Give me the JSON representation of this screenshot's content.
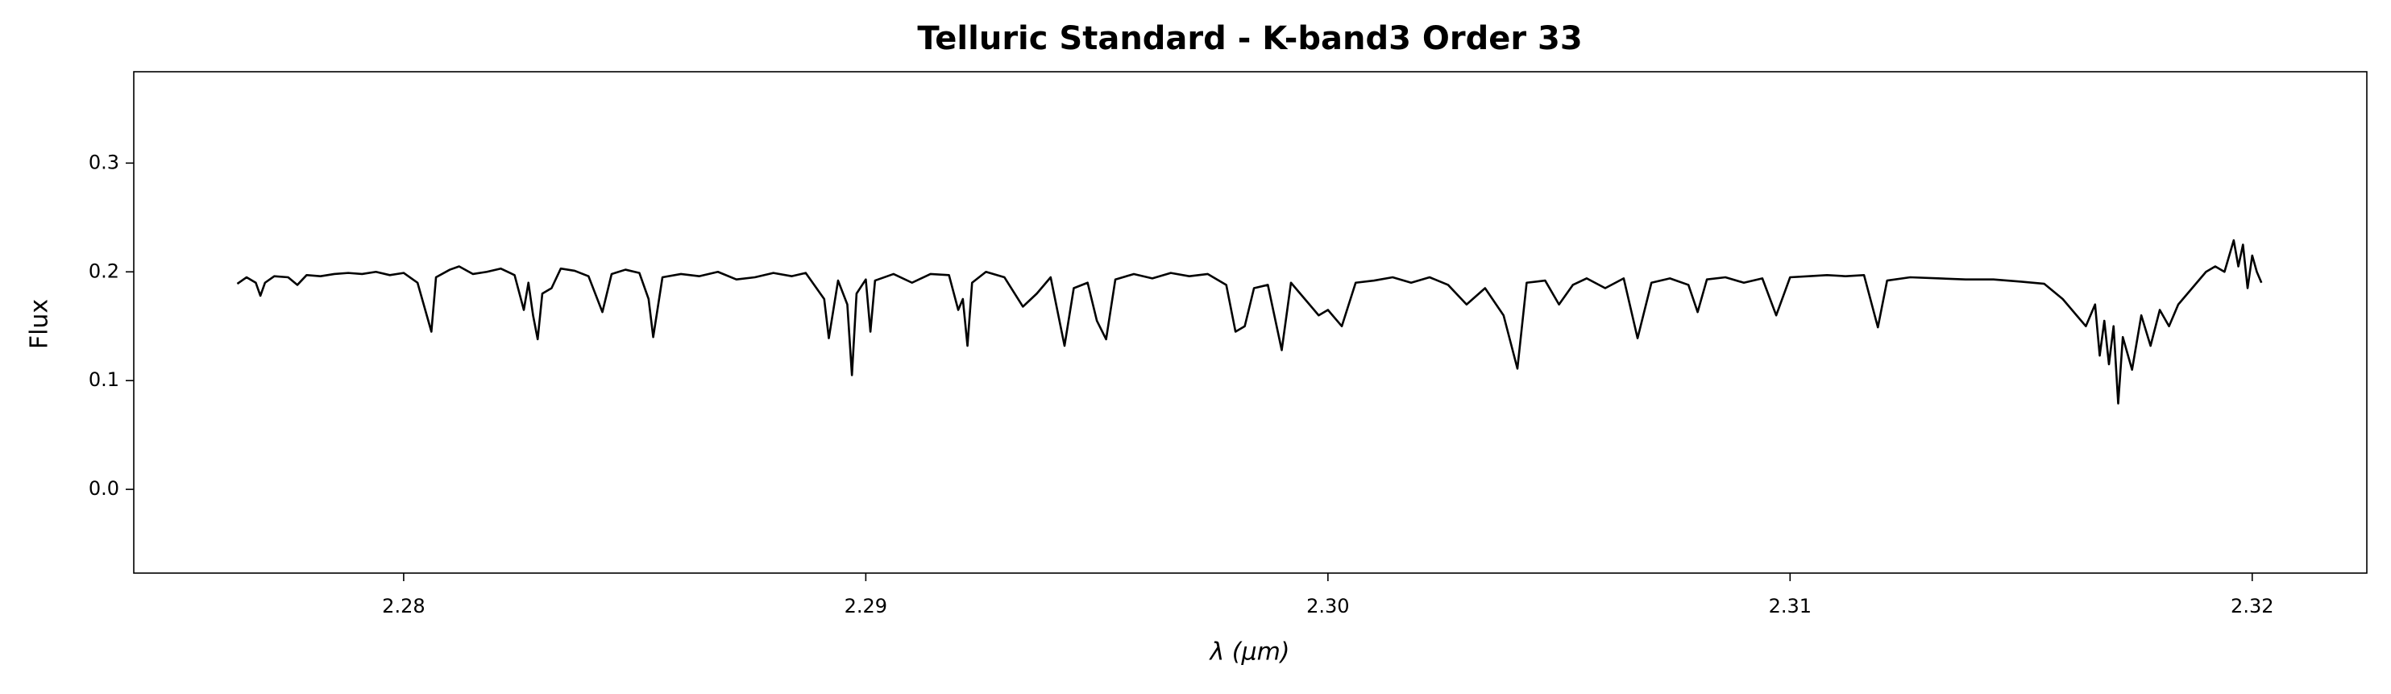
{
  "chart_data": {
    "type": "line",
    "title": "Telluric Standard - K-band3 Order 33",
    "xlabel": "λ (μm)",
    "ylabel": "Flux",
    "color": "#000000",
    "xlim": [
      2.27416,
      2.32248
    ],
    "ylim": [
      -0.077,
      0.384
    ],
    "xticks": [
      2.28,
      2.29,
      {
        "value": 2.3,
        "label": "2.30"
      },
      2.31,
      2.32
    ],
    "yticks": [
      {
        "value": 0,
        "label": "0.0"
      },
      0.1,
      0.2,
      0.3
    ],
    "x": [
      2.2764,
      2.2766,
      2.2768,
      2.2769,
      2.277,
      2.2772,
      2.2775,
      2.2777,
      2.2779,
      2.2782,
      2.2785,
      2.2788,
      2.2791,
      2.2794,
      2.2797,
      2.28,
      2.2803,
      2.2805,
      2.2806,
      2.2807,
      2.281,
      2.2812,
      2.2815,
      2.2818,
      2.2821,
      2.2824,
      2.2826,
      2.2827,
      2.2828,
      2.2829,
      2.283,
      2.2832,
      2.2834,
      2.2837,
      2.284,
      2.2843,
      2.2845,
      2.2848,
      2.2851,
      2.2853,
      2.2854,
      2.2856,
      2.286,
      2.2864,
      2.2868,
      2.2872,
      2.2876,
      2.288,
      2.2884,
      2.2887,
      2.2891,
      2.2892,
      2.2894,
      2.2896,
      2.2897,
      2.2898,
      2.29,
      2.2901,
      2.2902,
      2.2906,
      2.291,
      2.2914,
      2.2918,
      2.292,
      2.2921,
      2.2922,
      2.2923,
      2.2926,
      2.293,
      2.2934,
      2.2937,
      2.294,
      2.2943,
      2.2945,
      2.2948,
      2.295,
      2.2952,
      2.2954,
      2.2958,
      2.2962,
      2.2966,
      2.297,
      2.2974,
      2.2978,
      2.298,
      2.2982,
      2.2984,
      2.2987,
      2.299,
      2.2992,
      2.2995,
      2.2998,
      2.3,
      2.3003,
      2.3006,
      2.301,
      2.3014,
      2.3018,
      2.3022,
      2.3026,
      2.303,
      2.3034,
      2.3038,
      2.3041,
      2.3043,
      2.3047,
      2.305,
      2.3053,
      2.3056,
      2.306,
      2.3064,
      2.3067,
      2.307,
      2.3074,
      2.3078,
      2.308,
      2.3082,
      2.3086,
      2.309,
      2.3094,
      2.3097,
      2.31,
      2.3104,
      2.3108,
      2.3112,
      2.3116,
      2.3119,
      2.3121,
      2.3126,
      2.3132,
      2.3138,
      2.3144,
      2.315,
      2.3155,
      2.3159,
      2.3162,
      2.3164,
      2.3166,
      2.3167,
      2.3168,
      2.3169,
      2.317,
      2.3171,
      2.3172,
      2.3174,
      2.3176,
      2.3178,
      2.318,
      2.3182,
      2.3184,
      2.3186,
      2.3188,
      2.319,
      2.3192,
      2.3194,
      2.3196,
      2.3197,
      2.3198,
      2.3199,
      2.32,
      2.3201,
      2.3202
    ],
    "values": [
      0.189,
      0.195,
      0.19,
      0.178,
      0.19,
      0.196,
      0.195,
      0.188,
      0.197,
      0.196,
      0.198,
      0.199,
      0.198,
      0.2,
      0.197,
      0.199,
      0.19,
      0.16,
      0.145,
      0.195,
      0.202,
      0.205,
      0.198,
      0.2,
      0.203,
      0.197,
      0.165,
      0.19,
      0.16,
      0.138,
      0.18,
      0.185,
      0.203,
      0.201,
      0.196,
      0.163,
      0.198,
      0.202,
      0.199,
      0.175,
      0.14,
      0.195,
      0.198,
      0.196,
      0.2,
      0.193,
      0.195,
      0.199,
      0.196,
      0.199,
      0.175,
      0.139,
      0.192,
      0.17,
      0.105,
      0.18,
      0.193,
      0.145,
      0.192,
      0.198,
      0.19,
      0.198,
      0.197,
      0.165,
      0.175,
      0.132,
      0.19,
      0.2,
      0.195,
      0.168,
      0.18,
      0.195,
      0.132,
      0.185,
      0.19,
      0.155,
      0.138,
      0.193,
      0.198,
      0.194,
      0.199,
      0.196,
      0.198,
      0.188,
      0.145,
      0.15,
      0.185,
      0.188,
      0.128,
      0.19,
      0.175,
      0.16,
      0.165,
      0.15,
      0.19,
      0.192,
      0.195,
      0.19,
      0.195,
      0.188,
      0.17,
      0.185,
      0.16,
      0.111,
      0.19,
      0.192,
      0.17,
      0.188,
      0.194,
      0.185,
      0.194,
      0.139,
      0.19,
      0.194,
      0.188,
      0.163,
      0.193,
      0.195,
      0.19,
      0.194,
      0.16,
      0.195,
      0.196,
      0.197,
      0.196,
      0.197,
      0.149,
      0.192,
      0.195,
      0.194,
      0.193,
      0.193,
      0.191,
      0.189,
      0.175,
      0.16,
      0.15,
      0.17,
      0.123,
      0.155,
      0.115,
      0.15,
      0.079,
      0.14,
      0.11,
      0.16,
      0.132,
      0.165,
      0.15,
      0.17,
      0.18,
      0.19,
      0.2,
      0.205,
      0.2,
      0.229,
      0.205,
      0.225,
      0.185,
      0.215,
      0.2,
      0.19
    ]
  }
}
